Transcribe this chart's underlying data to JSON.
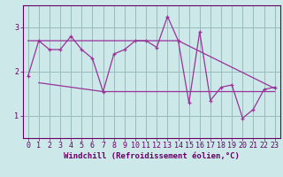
{
  "xlabel": "Windchill (Refroidissement éolien,°C)",
  "xlim": [
    -0.5,
    23.5
  ],
  "ylim": [
    0.5,
    3.5
  ],
  "xticks": [
    0,
    1,
    2,
    3,
    4,
    5,
    6,
    7,
    8,
    9,
    10,
    11,
    12,
    13,
    14,
    15,
    16,
    17,
    18,
    19,
    20,
    21,
    22,
    23
  ],
  "yticks": [
    1,
    2,
    3
  ],
  "data_x": [
    0,
    1,
    2,
    3,
    4,
    5,
    6,
    7,
    8,
    9,
    10,
    11,
    12,
    13,
    14,
    15,
    16,
    17,
    18,
    19,
    20,
    21,
    22,
    23
  ],
  "data_y": [
    1.9,
    2.7,
    2.5,
    2.5,
    2.8,
    2.5,
    2.3,
    1.55,
    2.4,
    2.5,
    2.7,
    2.7,
    2.55,
    3.25,
    2.7,
    1.3,
    2.9,
    1.35,
    1.65,
    1.7,
    0.95,
    1.15,
    1.6,
    1.65
  ],
  "trend1_x": [
    0,
    14,
    23
  ],
  "trend1_y": [
    2.7,
    2.7,
    1.62
  ],
  "trend2_x": [
    1,
    7,
    23
  ],
  "trend2_y": [
    1.75,
    1.55,
    1.55
  ],
  "line_color": "#993399",
  "bg_color": "#cce8e8",
  "grid_color": "#99bbbb",
  "text_color": "#660066",
  "font_family": "monospace",
  "label_fontsize": 6.5,
  "tick_fontsize": 6
}
